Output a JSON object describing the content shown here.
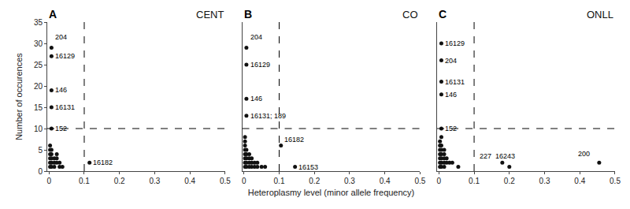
{
  "chart_data": [
    {
      "type": "scatter",
      "title": "CENT",
      "ylabel": "Number of occurences",
      "x": [
        0.007,
        0.007,
        0.007,
        0.007,
        0.007,
        0.115,
        0.003,
        0.003,
        0.003,
        0.003,
        0.003,
        0.003,
        0.007,
        0.007,
        0.007,
        0.007,
        0.007,
        0.015,
        0.015,
        0.015,
        0.022,
        0.022,
        0.022,
        0.03,
        0.03,
        0.038
      ],
      "values": [
        29,
        27,
        19,
        15,
        10,
        2,
        6,
        5,
        4,
        3,
        2,
        1,
        5,
        4,
        3,
        2,
        1,
        3,
        2,
        1,
        4,
        3,
        2,
        2,
        1,
        1
      ],
      "color": "#111111",
      "xlim": [
        -0.005,
        0.5
      ],
      "xticks": [
        0,
        0.1,
        0.2,
        0.3,
        0.4,
        0.5
      ],
      "ylim": [
        0,
        35
      ],
      "yticks": [
        0,
        5,
        10,
        15,
        20,
        25,
        30,
        35
      ],
      "vline": 0.1,
      "hline": 10,
      "grid": false,
      "annotations": [
        {
          "text": "A"
        },
        {
          "text": "204",
          "x": 0.013,
          "y": 31.5
        },
        {
          "text": "16129",
          "x": 0.013,
          "y": 27
        },
        {
          "text": "146",
          "x": 0.013,
          "y": 19
        },
        {
          "text": "16131",
          "x": 0.013,
          "y": 15
        },
        {
          "text": "152",
          "x": 0.013,
          "y": 10
        },
        {
          "text": "16182",
          "x": 0.12,
          "y": 2
        }
      ]
    },
    {
      "type": "scatter",
      "title": "CO",
      "xlabel": "Heteroplasmy level (minor allele frequency)",
      "x": [
        0.007,
        0.007,
        0.007,
        0.007,
        0.105,
        0.145,
        0.003,
        0.003,
        0.003,
        0.003,
        0.003,
        0.003,
        0.003,
        0.003,
        0.007,
        0.007,
        0.007,
        0.007,
        0.007,
        0.015,
        0.015,
        0.015,
        0.015,
        0.022,
        0.022,
        0.022,
        0.03,
        0.03,
        0.038,
        0.038,
        0.05,
        0.06
      ],
      "values": [
        29,
        25,
        17,
        13,
        6,
        1,
        8,
        7,
        6,
        5,
        4,
        3,
        2,
        1,
        5,
        4,
        3,
        2,
        1,
        4,
        3,
        2,
        1,
        3,
        2,
        1,
        2,
        1,
        2,
        1,
        1,
        1
      ],
      "color": "#111111",
      "xlim": [
        -0.005,
        0.5
      ],
      "xticks": [
        0,
        0.1,
        0.2,
        0.3,
        0.4,
        0.5
      ],
      "ylim": [
        0,
        35
      ],
      "tick_labels": "x",
      "vline": 0.1,
      "hline": 10,
      "grid": false,
      "annotations": [
        {
          "text": "B"
        },
        {
          "text": "204",
          "x": 0.013,
          "y": 31.5
        },
        {
          "text": "16129",
          "x": 0.013,
          "y": 25
        },
        {
          "text": "146",
          "x": 0.013,
          "y": 17
        },
        {
          "text": "16131; 189",
          "x": 0.013,
          "y": 13
        },
        {
          "text": "16182",
          "x": 0.11,
          "y": 7.5
        },
        {
          "text": "16153",
          "x": 0.15,
          "y": 1
        }
      ]
    },
    {
      "type": "scatter",
      "title": "ONLL",
      "x": [
        0.007,
        0.007,
        0.007,
        0.007,
        0.007,
        0.18,
        0.2,
        0.455,
        0.003,
        0.003,
        0.003,
        0.003,
        0.003,
        0.003,
        0.003,
        0.007,
        0.007,
        0.007,
        0.007,
        0.007,
        0.007,
        0.007,
        0.015,
        0.015,
        0.015,
        0.015,
        0.015,
        0.022,
        0.022,
        0.03,
        0.038,
        0.055
      ],
      "values": [
        30,
        26,
        21,
        18,
        10,
        2,
        1,
        2,
        7,
        6,
        5,
        4,
        3,
        2,
        1,
        8,
        6,
        5,
        4,
        3,
        2,
        1,
        5,
        4,
        3,
        2,
        1,
        3,
        2,
        2,
        2,
        1
      ],
      "color": "#111111",
      "xlim": [
        -0.005,
        0.5
      ],
      "xticks": [
        0,
        0.1,
        0.2,
        0.3,
        0.4,
        0.5
      ],
      "ylim": [
        0,
        35
      ],
      "tick_labels": "x",
      "vline": 0.1,
      "hline": 10,
      "grid": false,
      "annotations": [
        {
          "text": "C"
        },
        {
          "text": "16129",
          "x": 0.013,
          "y": 30
        },
        {
          "text": "204",
          "x": 0.013,
          "y": 26
        },
        {
          "text": "16131",
          "x": 0.013,
          "y": 21
        },
        {
          "text": "146",
          "x": 0.013,
          "y": 18
        },
        {
          "text": "152",
          "x": 0.013,
          "y": 10
        },
        {
          "text": "227",
          "x": 0.11,
          "y": 3.5
        },
        {
          "text": "16243",
          "x": 0.155,
          "y": 3.5
        },
        {
          "text": "200",
          "x": 0.39,
          "y": 4
        }
      ]
    }
  ]
}
